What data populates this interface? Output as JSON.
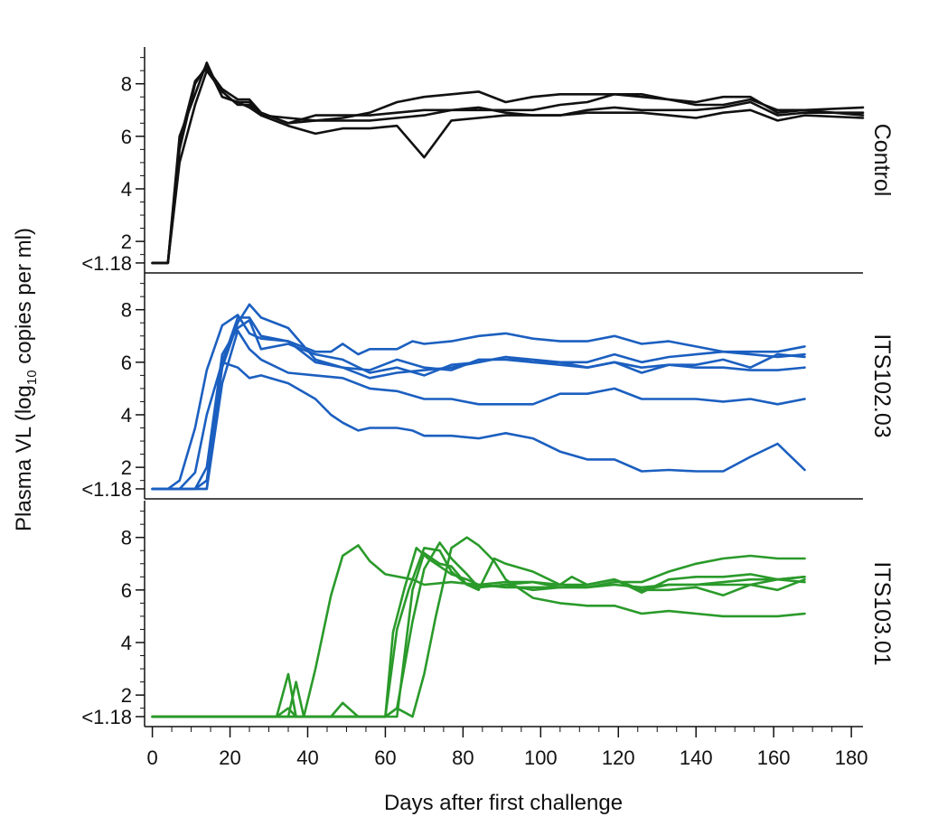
{
  "chart_data": {
    "type": "line",
    "xlabel": "Days after first challenge",
    "ylabel": {
      "main": "Plasma VL (log",
      "sub": "10",
      "rest": " copies per ml)"
    },
    "xlim": [
      -2,
      183
    ],
    "xticks": [
      0,
      20,
      40,
      60,
      80,
      100,
      120,
      140,
      160,
      180
    ],
    "xtick_labels": [
      "0",
      "20",
      "40",
      "60",
      "80",
      "100",
      "120",
      "140",
      "160",
      "180"
    ],
    "ylim": [
      0.8,
      9.4
    ],
    "yticks": [
      1.18,
      2,
      4,
      6,
      8
    ],
    "ytick_labels": [
      "<1.18",
      "2",
      "4",
      "6",
      "8"
    ],
    "grid": false,
    "panels": [
      {
        "label": "Control",
        "color": "#111111",
        "series": [
          {
            "x": [
              0,
              4,
              7,
              11,
              14,
              18,
              22,
              25,
              28,
              35,
              42,
              49,
              56,
              63,
              70,
              77,
              84,
              91,
              98,
              105,
              112,
              119,
              126,
              133,
              140,
              147,
              154,
              161,
              168,
              183
            ],
            "y": [
              1.18,
              1.18,
              5.5,
              8.0,
              8.7,
              7.5,
              7.3,
              7.3,
              6.8,
              6.7,
              6.6,
              6.6,
              6.6,
              6.7,
              6.8,
              7.0,
              7.1,
              6.9,
              6.8,
              6.8,
              6.9,
              6.9,
              6.9,
              6.8,
              6.7,
              6.9,
              7.0,
              6.6,
              6.8,
              6.7
            ]
          },
          {
            "x": [
              0,
              4,
              7,
              11,
              14,
              18,
              22,
              25,
              28,
              35,
              42,
              49,
              56,
              63,
              70,
              77,
              84,
              91,
              98,
              105,
              112,
              119,
              126,
              133,
              140,
              147,
              154,
              161,
              168,
              183
            ],
            "y": [
              1.18,
              1.18,
              5.8,
              8.1,
              8.6,
              7.8,
              7.4,
              7.4,
              6.9,
              6.5,
              6.6,
              6.7,
              6.9,
              7.3,
              7.5,
              7.6,
              7.7,
              7.3,
              7.5,
              7.6,
              7.6,
              7.6,
              7.5,
              7.4,
              7.3,
              7.5,
              7.5,
              6.9,
              7.0,
              7.1
            ]
          },
          {
            "x": [
              0,
              4,
              7,
              11,
              14,
              18,
              22,
              25,
              28,
              35,
              42,
              49,
              56,
              63,
              70,
              77,
              84,
              91,
              98,
              105,
              112,
              119,
              126,
              133,
              140,
              147,
              154,
              161,
              168,
              183
            ],
            "y": [
              1.18,
              1.18,
              6.0,
              7.6,
              8.8,
              7.5,
              7.3,
              7.1,
              6.8,
              6.4,
              6.1,
              6.3,
              6.3,
              6.4,
              5.2,
              6.6,
              6.7,
              6.8,
              6.8,
              6.8,
              7.0,
              7.1,
              7.0,
              7.0,
              7.0,
              7.1,
              7.3,
              6.8,
              6.9,
              6.9
            ]
          },
          {
            "x": [
              0,
              4,
              7,
              11,
              14,
              18,
              22,
              25,
              28,
              35,
              42,
              49,
              56,
              63,
              70,
              77,
              84,
              91,
              98,
              105,
              112,
              119,
              126,
              133,
              140,
              147,
              154,
              161,
              168,
              183
            ],
            "y": [
              1.18,
              1.18,
              5.0,
              7.2,
              8.5,
              7.7,
              7.2,
              7.2,
              6.9,
              6.5,
              6.8,
              6.8,
              6.8,
              6.9,
              7.0,
              7.0,
              7.0,
              7.0,
              7.0,
              7.2,
              7.3,
              7.6,
              7.6,
              7.4,
              7.2,
              7.2,
              7.4,
              7.0,
              7.0,
              6.8
            ]
          }
        ]
      },
      {
        "label": "ITS102.03",
        "color": "#1b5fc0",
        "series": [
          {
            "x": [
              0,
              4,
              7,
              11,
              14,
              18,
              22,
              25,
              28,
              35,
              42,
              46,
              49,
              53,
              56,
              63,
              67,
              70,
              77,
              84,
              91,
              98,
              105,
              112,
              119,
              126,
              133,
              140,
              147,
              154,
              161,
              168
            ],
            "y": [
              1.18,
              1.18,
              1.5,
              3.5,
              5.7,
              7.4,
              7.8,
              7.1,
              6.9,
              6.8,
              6.4,
              6.4,
              6.7,
              6.3,
              6.5,
              6.5,
              6.8,
              6.7,
              6.8,
              7.0,
              7.1,
              6.9,
              6.8,
              6.8,
              7.0,
              6.7,
              6.8,
              6.6,
              6.4,
              6.4,
              6.4,
              6.6
            ]
          },
          {
            "x": [
              0,
              4,
              7,
              11,
              14,
              18,
              22,
              25,
              28,
              35,
              42,
              49,
              56,
              63,
              70,
              77,
              84,
              91,
              98,
              105,
              112,
              119,
              126,
              133,
              140,
              147,
              154,
              161,
              168
            ],
            "y": [
              1.18,
              1.18,
              1.18,
              1.8,
              4.0,
              6.0,
              7.7,
              7.7,
              7.0,
              6.8,
              6.0,
              5.8,
              5.4,
              5.6,
              5.7,
              5.8,
              6.0,
              6.2,
              6.0,
              5.9,
              5.8,
              6.0,
              5.8,
              5.9,
              5.9,
              6.1,
              5.8,
              6.3,
              6.2
            ]
          },
          {
            "x": [
              0,
              4,
              7,
              11,
              14,
              18,
              22,
              25,
              28,
              35,
              42,
              49,
              56,
              63,
              70,
              77,
              84,
              91,
              98,
              105,
              112,
              119,
              126,
              133,
              140,
              147,
              154,
              161,
              168
            ],
            "y": [
              1.18,
              1.18,
              1.18,
              1.18,
              1.5,
              5.8,
              7.5,
              8.2,
              7.7,
              7.3,
              6.1,
              5.8,
              5.7,
              6.1,
              5.8,
              5.7,
              6.1,
              6.1,
              6.0,
              6.0,
              5.8,
              6.0,
              5.6,
              5.9,
              5.8,
              5.8,
              5.7,
              5.7,
              5.8
            ]
          },
          {
            "x": [
              0,
              4,
              7,
              11,
              14,
              18,
              22,
              25,
              28,
              35,
              42,
              49,
              56,
              63,
              70,
              77,
              84,
              91,
              98,
              105,
              112,
              119,
              126,
              133,
              140,
              147,
              154,
              161,
              168
            ],
            "y": [
              1.18,
              1.18,
              1.18,
              1.18,
              1.18,
              5.2,
              7.2,
              6.5,
              6.1,
              5.6,
              5.5,
              5.4,
              5.0,
              4.9,
              4.6,
              4.6,
              4.4,
              4.4,
              4.4,
              4.8,
              4.8,
              5.0,
              4.6,
              4.6,
              4.6,
              4.5,
              4.6,
              4.4,
              4.6
            ]
          },
          {
            "x": [
              0,
              4,
              7,
              11,
              14,
              18,
              22,
              25,
              28,
              35,
              42,
              46,
              49,
              53,
              56,
              63,
              67,
              70,
              77,
              84,
              91,
              98,
              105,
              112,
              119,
              126,
              133,
              140,
              147,
              154,
              161,
              168
            ],
            "y": [
              1.18,
              1.18,
              1.18,
              1.18,
              1.18,
              6.0,
              5.8,
              5.4,
              5.5,
              5.2,
              4.6,
              4.0,
              3.7,
              3.4,
              3.5,
              3.5,
              3.4,
              3.2,
              3.2,
              3.1,
              3.3,
              3.1,
              2.6,
              2.3,
              2.3,
              1.85,
              1.9,
              1.85,
              1.85,
              2.4,
              2.9,
              1.9
            ]
          },
          {
            "x": [
              0,
              4,
              7,
              11,
              14,
              18,
              22,
              25,
              28,
              35,
              42,
              49,
              56,
              63,
              70,
              77,
              84,
              91,
              98,
              105,
              112,
              119,
              126,
              133,
              140,
              147,
              154,
              161,
              168
            ],
            "y": [
              1.18,
              1.18,
              1.18,
              1.18,
              2.0,
              6.3,
              7.3,
              7.6,
              6.5,
              6.7,
              6.3,
              6.1,
              5.6,
              5.8,
              5.5,
              5.9,
              6.0,
              6.2,
              6.1,
              6.0,
              6.0,
              6.3,
              6.0,
              6.2,
              6.3,
              6.4,
              6.3,
              6.2,
              6.3
            ]
          }
        ]
      },
      {
        "label": "ITS103.01",
        "color": "#2a9a2a",
        "series": [
          {
            "x": [
              0,
              32,
              35,
              37,
              39,
              42,
              46,
              49,
              53,
              56,
              60,
              67,
              70,
              77,
              84,
              91,
              98,
              105,
              112,
              119,
              126,
              133,
              140,
              147,
              154,
              161,
              168
            ],
            "y": [
              1.18,
              1.18,
              1.5,
              1.18,
              1.18,
              3.0,
              5.8,
              7.3,
              7.7,
              7.1,
              6.6,
              6.4,
              6.2,
              6.3,
              6.2,
              6.1,
              6.1,
              6.1,
              6.1,
              6.2,
              6.1,
              6.2,
              6.2,
              6.3,
              6.4,
              6.4,
              6.3
            ]
          },
          {
            "x": [
              0,
              32,
              35,
              37,
              39,
              42,
              46,
              49,
              53,
              56,
              60,
              63,
              66,
              70,
              74,
              77,
              81,
              84,
              91,
              98,
              105,
              112,
              119,
              126,
              133,
              140,
              147,
              154,
              161,
              168
            ],
            "y": [
              1.18,
              1.18,
              2.8,
              1.18,
              1.18,
              1.18,
              1.18,
              1.7,
              1.18,
              1.18,
              1.18,
              4.5,
              6.0,
              7.6,
              7.5,
              6.7,
              6.2,
              6.1,
              6.2,
              6.3,
              6.1,
              6.2,
              6.4,
              6.0,
              6.2,
              6.2,
              6.2,
              6.2,
              6.0,
              6.4
            ]
          },
          {
            "x": [
              0,
              35,
              37,
              39,
              42,
              46,
              49,
              53,
              56,
              60,
              62,
              65,
              68,
              71,
              74,
              77,
              81,
              84,
              91,
              98,
              105,
              112,
              119,
              126,
              133,
              140,
              147,
              154,
              161,
              168
            ],
            "y": [
              1.18,
              1.18,
              2.5,
              1.18,
              1.18,
              1.18,
              1.18,
              1.18,
              1.18,
              1.18,
              4.4,
              6.1,
              7.6,
              7.2,
              6.9,
              6.6,
              6.4,
              6.2,
              6.3,
              6.3,
              6.2,
              6.2,
              6.4,
              6.0,
              6.0,
              6.1,
              5.8,
              6.2,
              6.4,
              6.5
            ]
          },
          {
            "x": [
              0,
              35,
              42,
              49,
              56,
              60,
              63,
              67,
              70,
              74,
              77,
              81,
              84,
              91,
              98,
              105,
              112,
              119,
              126,
              133,
              140,
              147,
              154,
              161,
              168
            ],
            "y": [
              1.18,
              1.18,
              1.18,
              1.18,
              1.18,
              1.18,
              1.5,
              4.8,
              6.8,
              7.8,
              7.2,
              6.6,
              6.1,
              6.2,
              6.0,
              6.1,
              6.1,
              6.3,
              6.3,
              6.7,
              7.0,
              7.2,
              7.3,
              7.2,
              7.2
            ]
          },
          {
            "x": [
              0,
              35,
              42,
              49,
              56,
              60,
              63,
              67,
              70,
              73,
              77,
              81,
              84,
              88,
              91,
              98,
              105,
              112,
              119,
              126,
              133,
              140,
              147,
              154,
              161,
              168
            ],
            "y": [
              1.18,
              1.18,
              1.18,
              1.18,
              1.18,
              1.18,
              1.5,
              1.18,
              2.8,
              5.0,
              7.6,
              8.0,
              7.7,
              7.1,
              6.4,
              5.7,
              5.5,
              5.4,
              5.4,
              5.1,
              5.2,
              5.1,
              5.0,
              5.0,
              5.0,
              5.1
            ]
          },
          {
            "x": [
              0,
              35,
              42,
              49,
              56,
              60,
              63,
              67,
              70,
              74,
              77,
              81,
              84,
              88,
              91,
              98,
              105,
              108,
              112,
              119,
              126,
              133,
              140,
              147,
              154,
              161,
              168
            ],
            "y": [
              1.18,
              1.18,
              1.18,
              1.18,
              1.18,
              1.18,
              1.18,
              6.0,
              7.4,
              7.0,
              6.9,
              6.2,
              6.0,
              7.2,
              7.0,
              6.7,
              6.2,
              6.5,
              6.2,
              6.4,
              5.9,
              6.4,
              6.5,
              6.5,
              6.6,
              6.4,
              6.5
            ]
          }
        ]
      }
    ]
  }
}
